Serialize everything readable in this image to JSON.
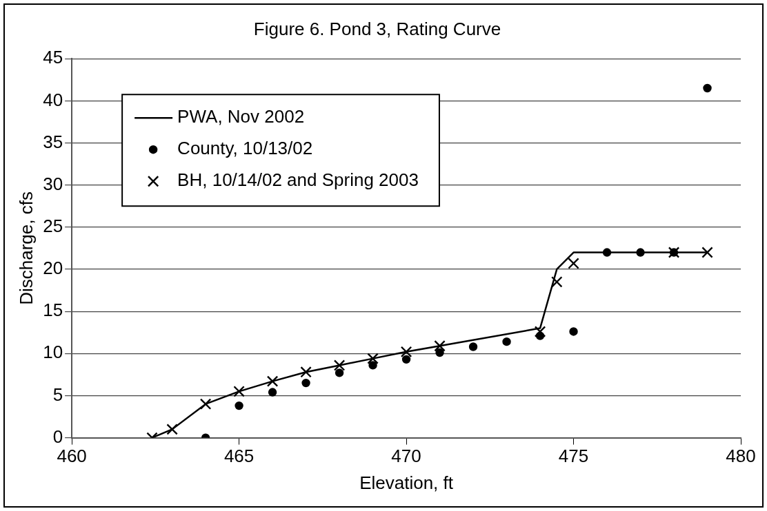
{
  "chart_data": {
    "type": "scatter",
    "title": "Figure 6. Pond 3, Rating Curve",
    "xlabel": "Elevation, ft",
    "ylabel": "Discharge, cfs",
    "xlim": [
      460,
      480
    ],
    "xticks": [
      460,
      465,
      470,
      475,
      480
    ],
    "ylim": [
      0,
      45
    ],
    "yticks": [
      0,
      5,
      10,
      15,
      20,
      25,
      30,
      35,
      40,
      45
    ],
    "grid": "y",
    "legend": "top left",
    "series": [
      {
        "name": "PWA, Nov 2002",
        "type": "line",
        "color": "#000000",
        "marker": "none",
        "line_style": "solid",
        "x": [
          462.4,
          463,
          464,
          465,
          466,
          467,
          468,
          469,
          470,
          471,
          474,
          474.5,
          475,
          479
        ],
        "values": [
          0,
          1,
          4,
          5.5,
          6.7,
          7.8,
          8.6,
          9.4,
          10.2,
          10.9,
          13,
          20,
          22,
          22
        ]
      },
      {
        "name": "County, 10/13/02",
        "type": "scatter",
        "color": "#000000",
        "marker": "circle",
        "x": [
          464,
          465,
          466,
          467,
          468,
          469,
          470,
          471,
          472,
          473,
          474,
          475,
          476,
          477,
          478,
          479
        ],
        "values": [
          0,
          3.8,
          5.4,
          6.5,
          7.7,
          8.6,
          9.3,
          10.1,
          10.8,
          11.4,
          12.1,
          12.6,
          22,
          22,
          22,
          41.5
        ]
      },
      {
        "name": "BH, 10/14/02 and Spring 2003",
        "type": "scatter",
        "color": "#000000",
        "marker": "cross",
        "x": [
          462.4,
          463,
          464,
          465,
          466,
          467,
          468,
          469,
          470,
          471,
          474,
          474.5,
          475,
          478,
          479
        ],
        "values": [
          0,
          1,
          4,
          5.5,
          6.7,
          7.8,
          8.6,
          9.4,
          10.2,
          10.9,
          12.6,
          18.5,
          20.7,
          22,
          22
        ]
      }
    ]
  }
}
